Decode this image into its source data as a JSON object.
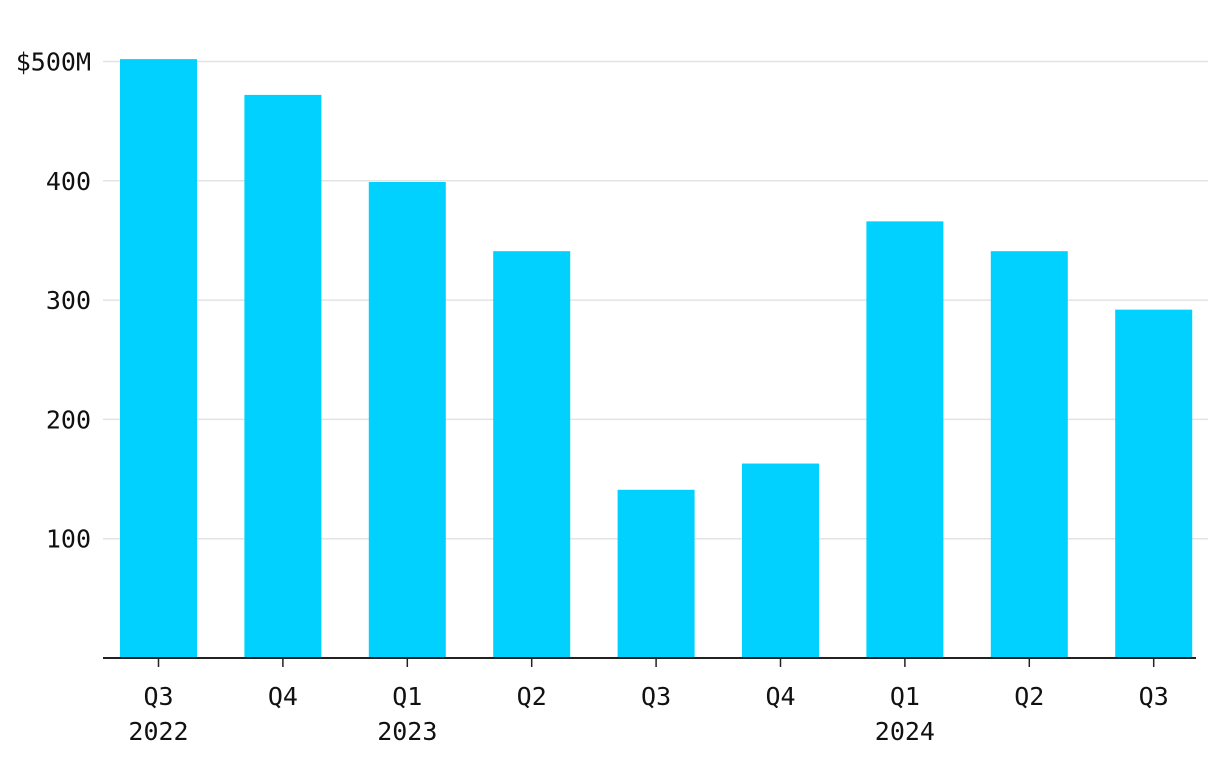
{
  "chart_data": {
    "type": "bar",
    "title": "",
    "xlabel": "",
    "ylabel": "",
    "categories": [
      "Q3",
      "Q4",
      "Q1",
      "Q2",
      "Q3",
      "Q4",
      "Q1",
      "Q2",
      "Q3"
    ],
    "year_labels": [
      "2022",
      "",
      "2023",
      "",
      "",
      "",
      "2024",
      "",
      ""
    ],
    "values": [
      502,
      472,
      399,
      341,
      141,
      163,
      366,
      341,
      292
    ],
    "ylim": [
      0,
      500
    ],
    "yticks": [
      {
        "value": 100,
        "label": "100"
      },
      {
        "value": 200,
        "label": "200"
      },
      {
        "value": 300,
        "label": "300"
      },
      {
        "value": 400,
        "label": "400"
      },
      {
        "value": 500,
        "label": "$500M"
      }
    ],
    "grid": true,
    "bar_color": "#00D1FF",
    "grid_color": "#E3E3E3",
    "axis_color": "#222222"
  }
}
